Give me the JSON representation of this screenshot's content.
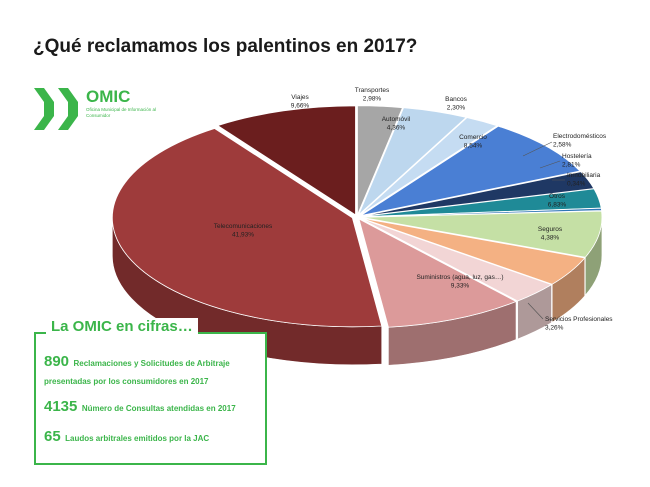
{
  "title": "¿Qué reclamamos los palentinos en 2017?",
  "logo": {
    "name": "OMIC",
    "subtitle": "Oficina Municipal de Información al Consumidor",
    "color": "#3bb54a"
  },
  "chart_data": {
    "type": "pie",
    "title": "¿Qué reclamamos los palentinos en 2017?",
    "style": "3d-exploded",
    "slices": [
      {
        "label": "Transportes",
        "value_text": "2,98%",
        "value": 2.98,
        "color": "#a6a6a6"
      },
      {
        "label": "Automóvil",
        "value_text": "4,36%",
        "value": 4.36,
        "color": "#bdd7ee"
      },
      {
        "label": "Bancos",
        "value_text": "2,30%",
        "value": 2.3,
        "color": "#c5dcf2"
      },
      {
        "label": "Comercio",
        "value_text": "8,54%",
        "value": 8.54,
        "color": "#4a7fd4"
      },
      {
        "label": "Electrodomésticos",
        "value_text": "2,58%",
        "value": 2.58,
        "color": "#1f3864"
      },
      {
        "label": "Hostelería",
        "value_text": "2,81%",
        "value": 2.81,
        "color": "#1f8a97"
      },
      {
        "label": "Inmobiliaria",
        "value_text": "0,34%",
        "value": 0.34,
        "color": "#2e75b6"
      },
      {
        "label": "Otros",
        "value_text": "6,83%",
        "value": 6.83,
        "color": "#c5e0a5"
      },
      {
        "label": "Seguros",
        "value_text": "4,38%",
        "value": 4.38,
        "color": "#f4b183"
      },
      {
        "label": "Servicios Profesionales",
        "value_text": "3,26%",
        "value": 3.26,
        "color": "#f2d5d5"
      },
      {
        "label": "Suministros (agua, luz, gas…)",
        "value_text": "9,33%",
        "value": 9.33,
        "color": "#dc9a9a"
      },
      {
        "label": "Telecomunicaciones",
        "value_text": "41,93%",
        "value": 41.93,
        "color": "#9e3b3b"
      },
      {
        "label": "Viajes",
        "value_text": "9,66%",
        "value": 9.66,
        "color": "#6b1e1e"
      }
    ]
  },
  "infobox": {
    "title": "La OMIC en cifras…",
    "stats": [
      {
        "number": "890",
        "text": "Reclamaciones y Solicitudes de Arbitraje presentadas por los consumidores en 2017"
      },
      {
        "number": "4135",
        "text": "Número de Consultas atendidas en 2017"
      },
      {
        "number": "65",
        "text": "Laudos arbitrales emitidos por la JAC"
      }
    ]
  }
}
